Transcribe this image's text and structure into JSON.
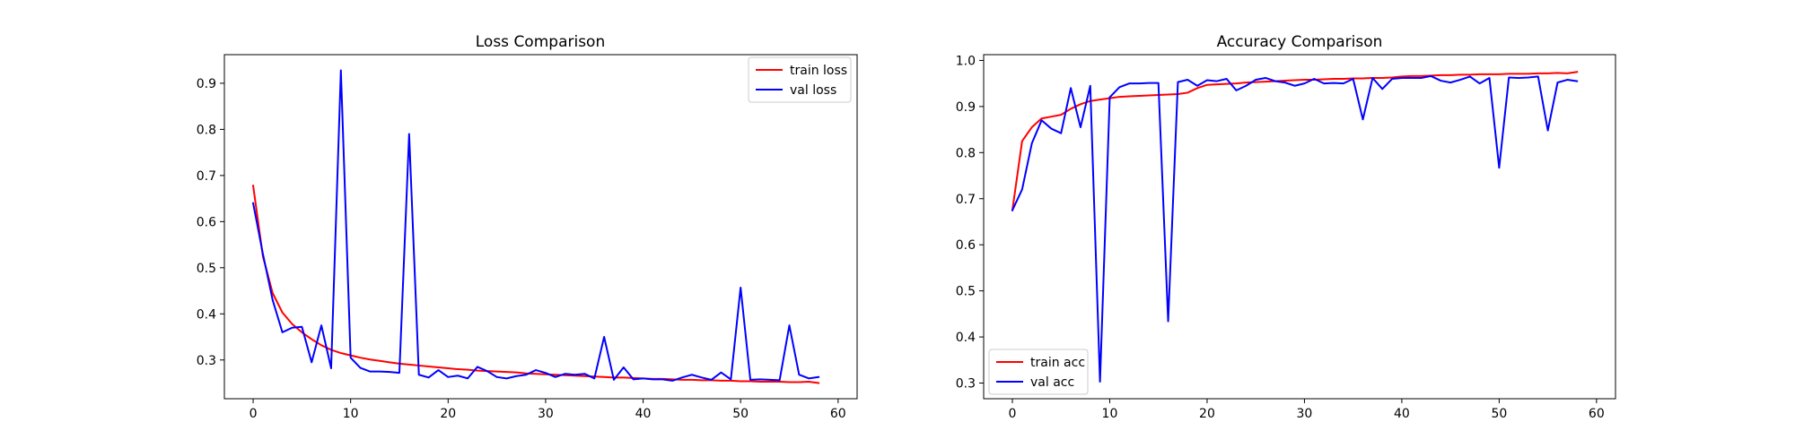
{
  "chart_data": [
    {
      "type": "line",
      "title": "Loss Comparison",
      "xlabel": "",
      "ylabel": "",
      "xlim": [
        -2.95,
        61.95
      ],
      "ylim": [
        0.216,
        0.962
      ],
      "xticks": [
        0,
        10,
        20,
        30,
        40,
        50,
        60
      ],
      "yticks": [
        0.3,
        0.4,
        0.5,
        0.6,
        0.7,
        0.8,
        0.9
      ],
      "yticks_labels": [
        "0.3",
        "0.4",
        "0.5",
        "0.6",
        "0.7",
        "0.8",
        "0.9"
      ],
      "grid": false,
      "legend_position": "top-right",
      "series": [
        {
          "name": "train loss",
          "color": "#ff0000",
          "x": [
            0,
            1,
            2,
            3,
            4,
            5,
            6,
            7,
            8,
            9,
            10,
            11,
            12,
            13,
            14,
            15,
            16,
            17,
            18,
            19,
            20,
            21,
            22,
            23,
            24,
            25,
            26,
            27,
            28,
            29,
            30,
            31,
            32,
            33,
            34,
            35,
            36,
            37,
            38,
            39,
            40,
            41,
            42,
            43,
            44,
            45,
            46,
            47,
            48,
            49,
            50,
            51,
            52,
            53,
            54,
            55,
            56,
            57,
            58
          ],
          "values": [
            0.678,
            0.525,
            0.445,
            0.403,
            0.378,
            0.36,
            0.345,
            0.332,
            0.322,
            0.315,
            0.31,
            0.305,
            0.301,
            0.298,
            0.295,
            0.292,
            0.29,
            0.288,
            0.286,
            0.284,
            0.282,
            0.28,
            0.279,
            0.277,
            0.276,
            0.275,
            0.274,
            0.273,
            0.271,
            0.27,
            0.269,
            0.268,
            0.267,
            0.266,
            0.265,
            0.264,
            0.263,
            0.262,
            0.262,
            0.261,
            0.26,
            0.259,
            0.259,
            0.258,
            0.257,
            0.257,
            0.256,
            0.256,
            0.255,
            0.255,
            0.254,
            0.254,
            0.253,
            0.253,
            0.253,
            0.252,
            0.252,
            0.253,
            0.25
          ]
        },
        {
          "name": "val loss",
          "color": "#0000ff",
          "x": [
            0,
            1,
            2,
            3,
            4,
            5,
            6,
            7,
            8,
            9,
            10,
            11,
            12,
            13,
            14,
            15,
            16,
            17,
            18,
            19,
            20,
            21,
            22,
            23,
            24,
            25,
            26,
            27,
            28,
            29,
            30,
            31,
            32,
            33,
            34,
            35,
            36,
            37,
            38,
            39,
            40,
            41,
            42,
            43,
            44,
            45,
            46,
            47,
            48,
            49,
            50,
            51,
            52,
            53,
            54,
            55,
            56,
            57,
            58
          ],
          "values": [
            0.64,
            0.53,
            0.43,
            0.36,
            0.37,
            0.372,
            0.295,
            0.375,
            0.282,
            0.928,
            0.305,
            0.283,
            0.275,
            0.275,
            0.274,
            0.272,
            0.79,
            0.268,
            0.262,
            0.278,
            0.263,
            0.266,
            0.26,
            0.285,
            0.276,
            0.263,
            0.26,
            0.265,
            0.268,
            0.278,
            0.272,
            0.263,
            0.27,
            0.268,
            0.27,
            0.26,
            0.35,
            0.257,
            0.284,
            0.258,
            0.26,
            0.258,
            0.258,
            0.255,
            0.262,
            0.268,
            0.262,
            0.257,
            0.273,
            0.258,
            0.457,
            0.257,
            0.258,
            0.257,
            0.256,
            0.375,
            0.268,
            0.26,
            0.263
          ]
        }
      ]
    },
    {
      "type": "line",
      "title": "Accuracy Comparison",
      "xlabel": "",
      "ylabel": "",
      "xlim": [
        -2.95,
        61.95
      ],
      "ylim": [
        0.266,
        1.0125
      ],
      "xticks": [
        0,
        10,
        20,
        30,
        40,
        50,
        60
      ],
      "yticks": [
        0.3,
        0.4,
        0.5,
        0.6,
        0.7,
        0.8,
        0.9,
        1.0
      ],
      "yticks_labels": [
        "0.3",
        "0.4",
        "0.5",
        "0.6",
        "0.7",
        "0.8",
        "0.9",
        "1.0"
      ],
      "grid": false,
      "legend_position": "bottom-left",
      "series": [
        {
          "name": "train acc",
          "color": "#ff0000",
          "x": [
            0,
            1,
            2,
            3,
            4,
            5,
            6,
            7,
            8,
            9,
            10,
            11,
            12,
            13,
            14,
            15,
            16,
            17,
            18,
            19,
            20,
            21,
            22,
            23,
            24,
            25,
            26,
            27,
            28,
            29,
            30,
            31,
            32,
            33,
            34,
            35,
            36,
            37,
            38,
            39,
            40,
            41,
            42,
            43,
            44,
            45,
            46,
            47,
            48,
            49,
            50,
            51,
            52,
            53,
            54,
            55,
            56,
            57,
            58
          ],
          "values": [
            0.675,
            0.825,
            0.855,
            0.874,
            0.878,
            0.882,
            0.895,
            0.905,
            0.912,
            0.915,
            0.918,
            0.921,
            0.922,
            0.923,
            0.924,
            0.925,
            0.926,
            0.927,
            0.93,
            0.94,
            0.947,
            0.948,
            0.949,
            0.95,
            0.952,
            0.953,
            0.954,
            0.955,
            0.956,
            0.957,
            0.958,
            0.958,
            0.959,
            0.96,
            0.96,
            0.961,
            0.961,
            0.962,
            0.962,
            0.963,
            0.965,
            0.966,
            0.966,
            0.967,
            0.968,
            0.968,
            0.969,
            0.969,
            0.97,
            0.97,
            0.97,
            0.971,
            0.971,
            0.971,
            0.972,
            0.972,
            0.973,
            0.972,
            0.975
          ]
        },
        {
          "name": "val acc",
          "color": "#0000ff",
          "x": [
            0,
            1,
            2,
            3,
            4,
            5,
            6,
            7,
            8,
            9,
            10,
            11,
            12,
            13,
            14,
            15,
            16,
            17,
            18,
            19,
            20,
            21,
            22,
            23,
            24,
            25,
            26,
            27,
            28,
            29,
            30,
            31,
            32,
            33,
            34,
            35,
            36,
            37,
            38,
            39,
            40,
            41,
            42,
            43,
            44,
            45,
            46,
            47,
            48,
            49,
            50,
            51,
            52,
            53,
            54,
            55,
            56,
            57,
            58
          ],
          "values": [
            0.675,
            0.72,
            0.82,
            0.87,
            0.852,
            0.842,
            0.94,
            0.855,
            0.945,
            0.303,
            0.92,
            0.942,
            0.95,
            0.95,
            0.951,
            0.951,
            0.434,
            0.953,
            0.958,
            0.945,
            0.957,
            0.955,
            0.96,
            0.935,
            0.945,
            0.958,
            0.962,
            0.955,
            0.952,
            0.945,
            0.95,
            0.96,
            0.95,
            0.951,
            0.95,
            0.96,
            0.872,
            0.962,
            0.938,
            0.96,
            0.962,
            0.962,
            0.962,
            0.966,
            0.956,
            0.952,
            0.958,
            0.965,
            0.95,
            0.962,
            0.767,
            0.963,
            0.962,
            0.963,
            0.965,
            0.848,
            0.952,
            0.958,
            0.955
          ]
        }
      ]
    }
  ]
}
